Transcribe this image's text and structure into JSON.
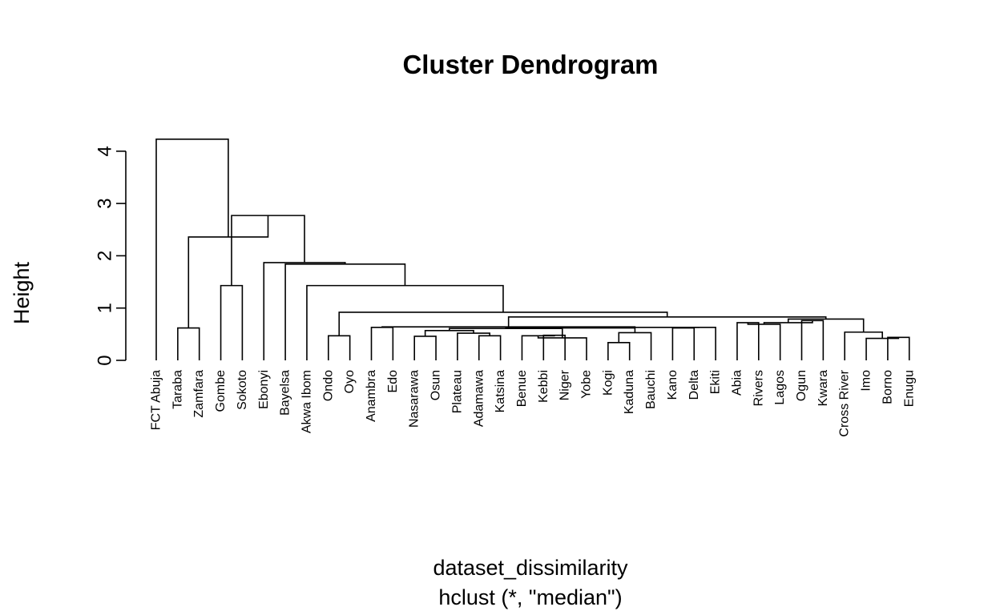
{
  "chart_data": {
    "type": "dendrogram",
    "title": "Cluster Dendrogram",
    "xlabel": "dataset_dissimilarity",
    "sublabel": "hclust (*, \"median\")",
    "ylabel": "Height",
    "yticks": [
      0,
      1,
      2,
      3,
      4
    ],
    "ylim": [
      0,
      4.4
    ],
    "leaves": [
      "FCT Abuja",
      "Taraba",
      "Zamfara",
      "Gombe",
      "Sokoto",
      "Ebonyi",
      "Bayelsa",
      "Akwa Ibom",
      "Ondo",
      "Oyo",
      "Anambra",
      "Edo",
      "Nasarawa",
      "Osun",
      "Plateau",
      "Adamawa",
      "Katsina",
      "Benue",
      "Kebbi",
      "Niger",
      "Yobe",
      "Kogi",
      "Kaduna",
      "Bauchi",
      "Kano",
      "Delta",
      "Ekiti",
      "Abia",
      "Rivers",
      "Lagos",
      "Ogun",
      "Kwara",
      "Cross River",
      "Imo",
      "Borno",
      "Enugu"
    ],
    "merges": [
      {
        "id": "m1",
        "a": "Gombe",
        "b": "Sokoto",
        "height": 1.43
      },
      {
        "id": "m2",
        "a": "Taraba",
        "b": "Zamfara",
        "height": 0.62
      },
      {
        "id": "m3",
        "a": "Ondo",
        "b": "Oyo",
        "height": 0.47
      },
      {
        "id": "m4",
        "a": "Kogi",
        "b": "Kaduna",
        "height": 0.34
      },
      {
        "id": "m5",
        "a": "m4",
        "b": "Bauchi",
        "height": 0.53
      },
      {
        "id": "m6",
        "a": "Kano",
        "b": "Delta",
        "height": 0.62
      },
      {
        "id": "m7",
        "a": "m6",
        "b": "Ekiti",
        "height": 0.63
      },
      {
        "id": "m8",
        "a": "Nasarawa",
        "b": "Osun",
        "height": 0.46
      },
      {
        "id": "m9",
        "a": "Adamawa",
        "b": "Katsina",
        "height": 0.47
      },
      {
        "id": "m10",
        "a": "Plateau",
        "b": "m9",
        "height": 0.52
      },
      {
        "id": "m11",
        "a": "m8",
        "b": "m10",
        "height": 0.57
      },
      {
        "id": "m12",
        "a": "Kebbi",
        "b": "Niger",
        "height": 0.48
      },
      {
        "id": "m13",
        "a": "Benue",
        "b": "m12",
        "height": 0.47
      },
      {
        "id": "m14",
        "a": "m13",
        "b": "Yobe",
        "height": 0.43
      },
      {
        "id": "m15",
        "a": "m11",
        "b": "m14",
        "height": 0.61
      },
      {
        "id": "m16",
        "a": "m15",
        "b": "m5",
        "height": 0.62
      },
      {
        "id": "m17",
        "a": "m16",
        "b": "m7",
        "height": 0.63
      },
      {
        "id": "m18",
        "a": "Anambra",
        "b": "Edo",
        "height": 0.63
      },
      {
        "id": "m19",
        "a": "m18",
        "b": "m17",
        "height": 0.64
      },
      {
        "id": "m20",
        "a": "Abia",
        "b": "Rivers",
        "height": 0.72
      },
      {
        "id": "m21",
        "a": "m20",
        "b": "Lagos",
        "height": 0.69
      },
      {
        "id": "m22",
        "a": "Ogun",
        "b": "Kwara",
        "height": 0.76
      },
      {
        "id": "m23",
        "a": "m21",
        "b": "m22",
        "height": 0.72
      },
      {
        "id": "m24",
        "a": "Borno",
        "b": "Enugu",
        "height": 0.44
      },
      {
        "id": "m25",
        "a": "Imo",
        "b": "m24",
        "height": 0.42
      },
      {
        "id": "m26",
        "a": "Cross River",
        "b": "m25",
        "height": 0.54
      },
      {
        "id": "m27",
        "a": "m26",
        "b": "m23",
        "height": 0.79
      },
      {
        "id": "m28",
        "a": "m19",
        "b": "m27",
        "height": 0.83
      },
      {
        "id": "m29",
        "a": "m3",
        "b": "m28",
        "height": 0.92
      },
      {
        "id": "m30",
        "a": "Akwa Ibom",
        "b": "m29",
        "height": 1.43
      },
      {
        "id": "m31",
        "a": "Bayelsa",
        "b": "m30",
        "height": 1.84
      },
      {
        "id": "m32",
        "a": "Ebonyi",
        "b": "m31",
        "height": 1.87
      },
      {
        "id": "m33",
        "a": "m32",
        "b": "m1",
        "height": 2.77
      },
      {
        "id": "m34",
        "a": "m2",
        "b": "m33",
        "height": 2.36
      },
      {
        "id": "m35",
        "a": "FCT Abuja",
        "b": "m34",
        "height": 4.23
      }
    ]
  }
}
